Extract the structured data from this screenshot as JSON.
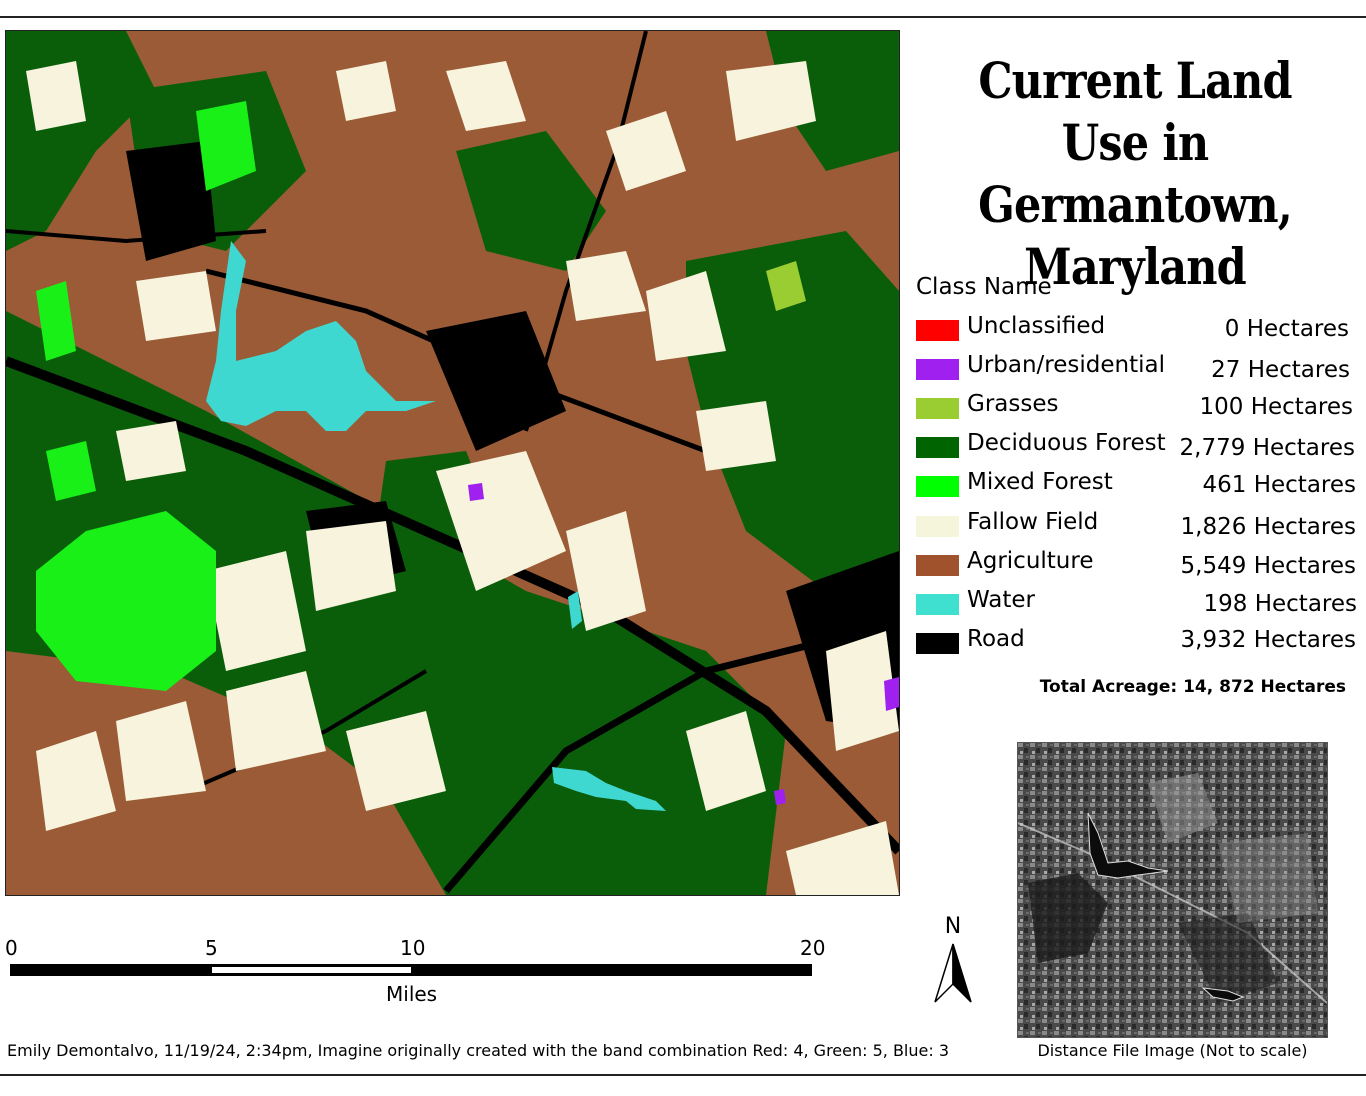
{
  "title": "Current Land Use in Germantown, Maryland",
  "legend": {
    "heading": "Class Name",
    "items": [
      {
        "label": "Unclassified",
        "value": "0 Hectares",
        "color": "#ff0000"
      },
      {
        "label": "Urban/residential",
        "value": "27 Hectares",
        "color": "#a020f0"
      },
      {
        "label": "Grasses",
        "value": "100 Hectares",
        "color": "#9acd32"
      },
      {
        "label": "Deciduous Forest",
        "value": "2,779 Hectares",
        "color": "#006400"
      },
      {
        "label": "Mixed Forest",
        "value": "461 Hectares",
        "color": "#00ff00"
      },
      {
        "label": "Fallow Field",
        "value": "1,826 Hectares",
        "color": "#f5f5dc"
      },
      {
        "label": "Agriculture",
        "value": "5,549 Hectares",
        "color": "#a0522d"
      },
      {
        "label": "Water",
        "value": "198 Hectares",
        "color": "#40e0d0"
      },
      {
        "label": "Road",
        "value": "3,932 Hectares",
        "color": "#000000"
      }
    ]
  },
  "total": "Total Acreage: 14, 872 Hectares",
  "scale": {
    "ticks": [
      "0",
      "5",
      "10",
      "20"
    ],
    "unit": "Miles"
  },
  "north_label": "N",
  "inset_caption": "Distance File Image (Not to scale)",
  "credit": "Emily Demontalvo, 11/19/24, 2:34pm, Imagine originally created with the band combination Red: 4, Green: 5, Blue: 3"
}
